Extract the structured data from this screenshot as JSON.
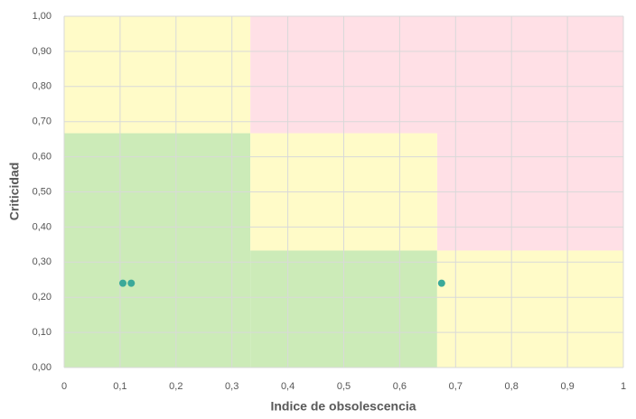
{
  "chart_data": {
    "type": "scatter",
    "x_label": "Indice de obsolescencia",
    "y_label": "Criticidad",
    "x": [
      0.105,
      0.12,
      0.675
    ],
    "values": [
      0.24,
      0.24,
      0.24
    ],
    "color": "#3aa999",
    "xlim": [
      0,
      1
    ],
    "ylim": [
      0,
      1
    ],
    "xticks": [
      0,
      {
        "value": 0.1,
        "label": "0,1"
      },
      {
        "value": 0.2,
        "label": "0,2"
      },
      {
        "value": 0.3,
        "label": "0,3"
      },
      {
        "value": 0.4,
        "label": "0,4"
      },
      {
        "value": 0.5,
        "label": "0,5"
      },
      {
        "value": 0.6,
        "label": "0,6"
      },
      {
        "value": 0.7,
        "label": "0,7"
      },
      {
        "value": 0.8,
        "label": "0,8"
      },
      {
        "value": 0.9,
        "label": "0,9"
      },
      1
    ],
    "yticks": [
      {
        "value": 0,
        "label": "0,00"
      },
      {
        "value": 0.1,
        "label": "0,10"
      },
      {
        "value": 0.2,
        "label": "0,20"
      },
      {
        "value": 0.3,
        "label": "0,30"
      },
      {
        "value": 0.4,
        "label": "0,40"
      },
      {
        "value": 0.5,
        "label": "0,50"
      },
      {
        "value": 0.6,
        "label": "0,60"
      },
      {
        "value": 0.7,
        "label": "0,70"
      },
      {
        "value": 0.8,
        "label": "0,80"
      },
      {
        "value": 0.9,
        "label": "0,90"
      },
      {
        "value": 1,
        "label": "1,00"
      }
    ],
    "grid": true,
    "regions": [
      {
        "xrange": [
          0,
          0.333
        ],
        "yrange": [
          0.667,
          1
        ],
        "color": "#fffbc8"
      },
      {
        "xrange": [
          0.333,
          1
        ],
        "yrange": [
          0.667,
          1
        ],
        "color": "#ffe0e6"
      },
      {
        "xrange": [
          0.667,
          1
        ],
        "yrange": [
          0.333,
          0.667
        ],
        "color": "#ffe0e6"
      },
      {
        "xrange": [
          0,
          0.333
        ],
        "yrange": [
          0,
          0.667
        ],
        "color": "#ccebb8"
      },
      {
        "xrange": [
          0.333,
          0.667
        ],
        "yrange": [
          0.333,
          0.667
        ],
        "color": "#fffbc8"
      },
      {
        "xrange": [
          0.333,
          0.667
        ],
        "yrange": [
          0,
          0.333
        ],
        "color": "#ccebb8"
      },
      {
        "xrange": [
          0.667,
          1
        ],
        "yrange": [
          0,
          0.333
        ],
        "color": "#fffbc8"
      }
    ]
  }
}
